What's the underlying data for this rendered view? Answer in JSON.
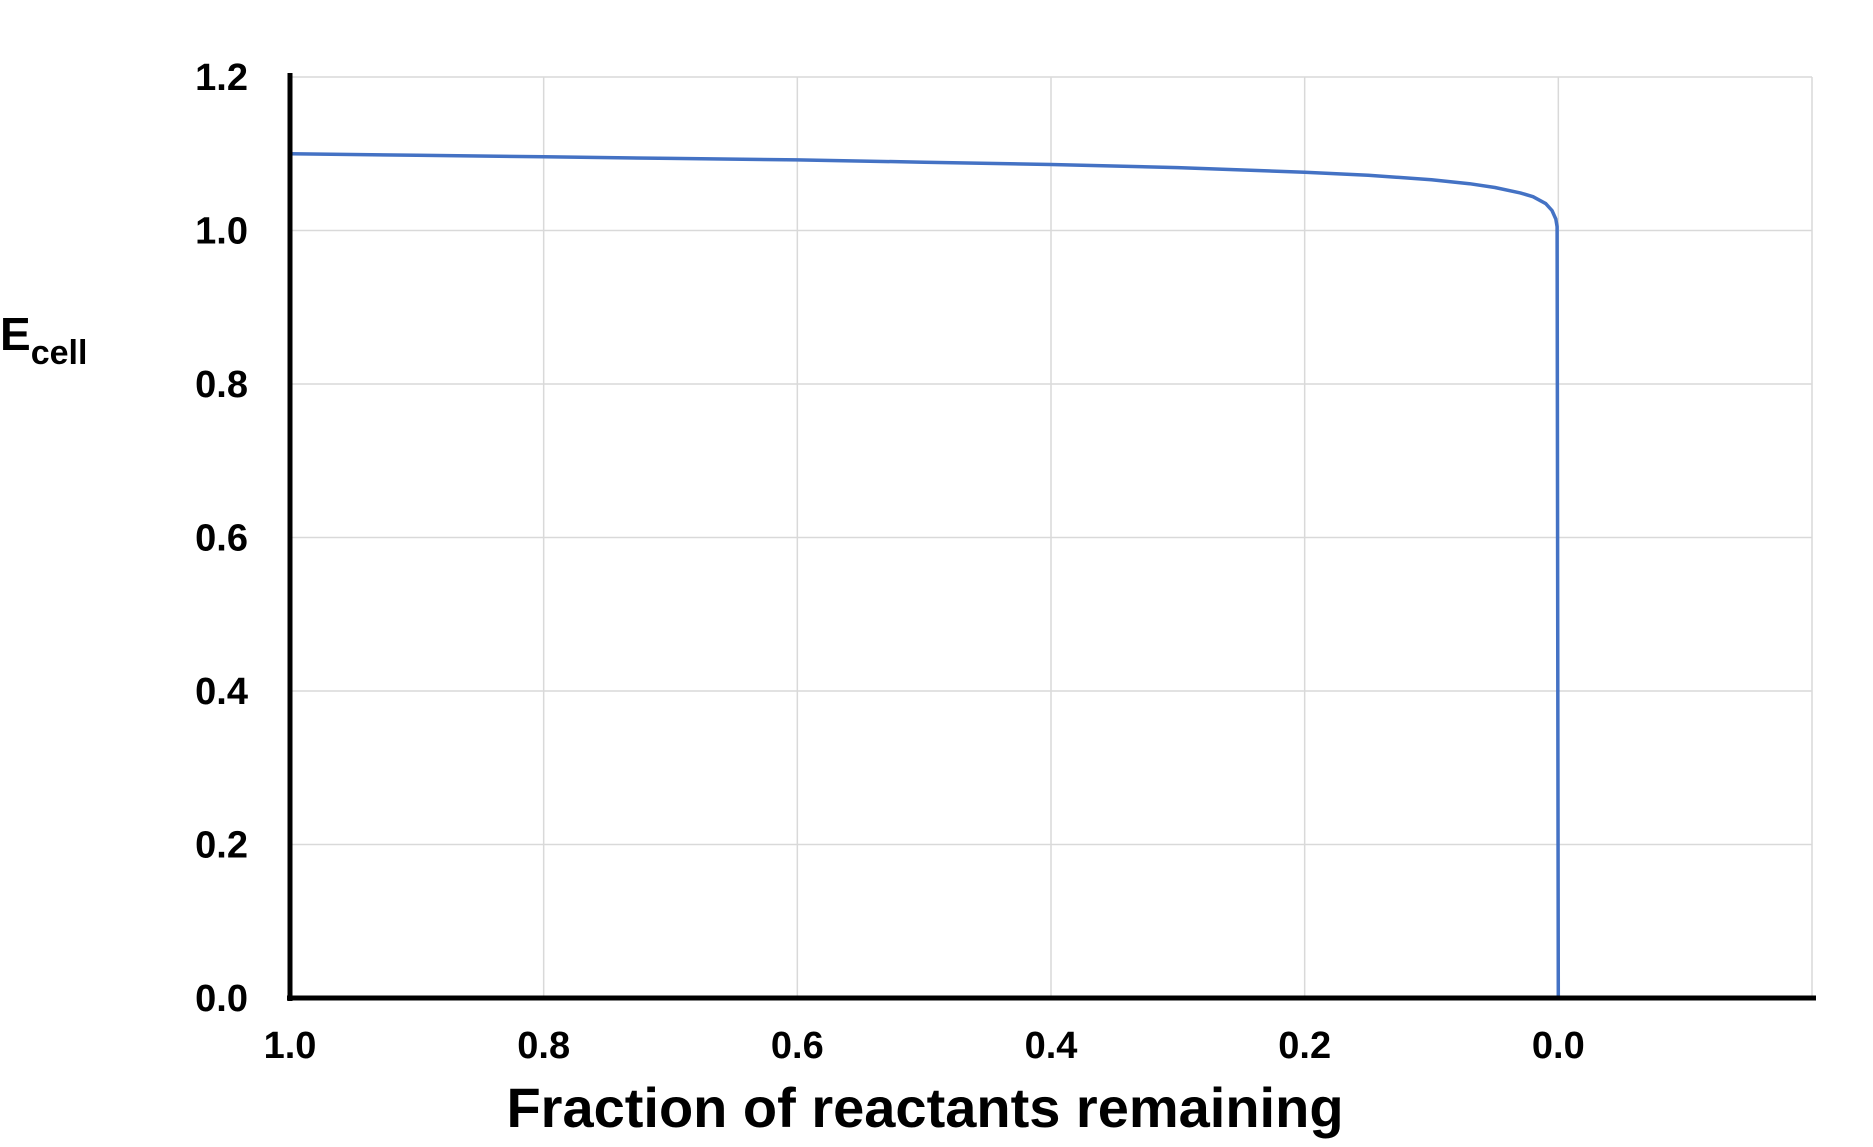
{
  "chart_data": {
    "type": "line",
    "xlabel": "Fraction of reactants remaining",
    "ylabel": {
      "main": "E",
      "sub": "cell"
    },
    "x_reversed": true,
    "xlim": [
      1.0,
      -0.2
    ],
    "ylim": [
      0.0,
      1.2
    ],
    "x_ticks": [
      "1.0",
      "0.8",
      "0.6",
      "0.4",
      "0.2",
      "0.0"
    ],
    "y_ticks": [
      "0.0",
      "0.2",
      "0.4",
      "0.6",
      "0.8",
      "1.0",
      "1.2"
    ],
    "grid": true,
    "colors": {
      "line": "#4472c4",
      "grid": "#d9d9d9",
      "axis": "#000000"
    },
    "series": [
      {
        "x": [
          1.0,
          0.9,
          0.8,
          0.7,
          0.6,
          0.5,
          0.4,
          0.3,
          0.2,
          0.15,
          0.1,
          0.07,
          0.05,
          0.03,
          0.02,
          0.01,
          0.005,
          0.002,
          0.001,
          0.0
        ],
        "y": [
          1.1,
          1.098,
          1.096,
          1.094,
          1.092,
          1.089,
          1.086,
          1.082,
          1.076,
          1.072,
          1.066,
          1.061,
          1.056,
          1.049,
          1.044,
          1.035,
          1.026,
          1.015,
          1.005,
          0.0
        ]
      }
    ]
  }
}
